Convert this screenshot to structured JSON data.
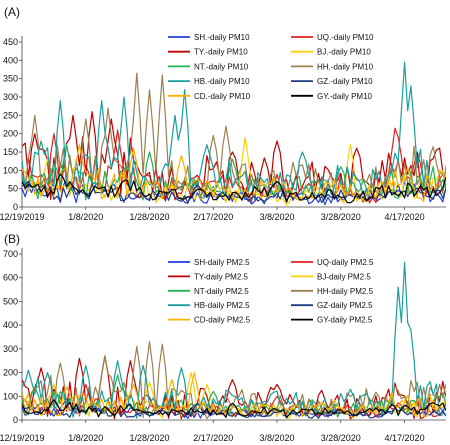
{
  "figure": {
    "panel_a_label": "(A)",
    "panel_b_label": "(B)"
  },
  "chart_data": [
    {
      "type": "line",
      "panel": "(A)",
      "title": "",
      "xlabel": "",
      "ylabel": "",
      "ylim": [
        0,
        450
      ],
      "yticks": [
        0,
        50,
        100,
        150,
        200,
        250,
        300,
        350,
        400,
        450
      ],
      "x_start": "12/19/2019",
      "x_end": "4/30/2020",
      "x_ticks": [
        "12/19/2019",
        "1/8/2020",
        "1/28/2020",
        "2/17/2020",
        "3/8/2020",
        "3/28/2020",
        "4/17/2020"
      ],
      "grid": false,
      "legend": "top-right",
      "series": [
        {
          "name": "SH.-daily PM10",
          "color": "#1f3fd8",
          "base": 40,
          "amp": 25,
          "peaks": [
            [
              14,
              75
            ]
          ]
        },
        {
          "name": "UQ.-daily PM10",
          "color": "#e02020",
          "base": 75,
          "amp": 45,
          "peaks": [
            [
              10,
              200
            ],
            [
              30,
              210
            ],
            [
              117,
              215
            ],
            [
              124,
              150
            ],
            [
              118,
              190
            ]
          ]
        },
        {
          "name": "TY.-daily PM10",
          "color": "#c00000",
          "base": 110,
          "amp": 70,
          "peaks": [
            [
              4,
              200
            ],
            [
              16,
              250
            ],
            [
              22,
              260
            ],
            [
              28,
              240
            ],
            [
              66,
              150
            ],
            [
              80,
              180
            ],
            [
              105,
              160
            ],
            [
              130,
              150
            ]
          ]
        },
        {
          "name": "BJ.-daily PM10",
          "color": "#ffd000",
          "base": 55,
          "amp": 40,
          "peaks": [
            [
              8,
              130
            ],
            [
              70,
              190
            ],
            [
              103,
              170
            ],
            [
              131,
              90
            ]
          ]
        },
        {
          "name": "NT.-daily PM10",
          "color": "#22b050",
          "base": 70,
          "amp": 40,
          "peaks": [
            [
              14,
              170
            ],
            [
              40,
              150
            ],
            [
              66,
              130
            ],
            [
              100,
              110
            ]
          ]
        },
        {
          "name": "HH.-daily PM10",
          "color": "#9b8050",
          "base": 100,
          "amp": 60,
          "peaks": [
            [
              4,
              250
            ],
            [
              20,
              240
            ],
            [
              27,
              270
            ],
            [
              36,
              365
            ],
            [
              40,
              320
            ],
            [
              44,
              360
            ],
            [
              60,
              195
            ],
            [
              64,
              220
            ]
          ]
        },
        {
          "name": "HB.-daily PM10",
          "color": "#1a9e9e",
          "base": 100,
          "amp": 60,
          "peaks": [
            [
              6,
              180
            ],
            [
              12,
              290
            ],
            [
              25,
              290
            ],
            [
              32,
              300
            ],
            [
              48,
              250
            ],
            [
              51,
              320
            ],
            [
              58,
              170
            ],
            [
              88,
              150
            ],
            [
              120,
              395
            ],
            [
              122,
              330
            ]
          ]
        },
        {
          "name": "GZ.-daily PM10",
          "color": "#1f3a80",
          "base": 40,
          "amp": 20,
          "peaks": [
            [
              2,
              70
            ],
            [
              55,
              60
            ]
          ]
        },
        {
          "name": "CD.-daily PM10",
          "color": "#ffb000",
          "base": 65,
          "amp": 40,
          "peaks": [
            [
              18,
              170
            ],
            [
              35,
              160
            ],
            [
              50,
              140
            ]
          ]
        },
        {
          "name": "GY.-daily PM10",
          "color": "#000000",
          "base": 50,
          "amp": 25,
          "peaks": [
            [
              12,
              90
            ],
            [
              80,
              70
            ]
          ]
        }
      ]
    },
    {
      "type": "line",
      "panel": "(B)",
      "title": "",
      "xlabel": "",
      "ylabel": "",
      "ylim": [
        0,
        700
      ],
      "yticks": [
        0,
        100,
        200,
        300,
        400,
        500,
        600,
        700
      ],
      "x_start": "12/19/2019",
      "x_end": "4/30/2020",
      "x_ticks": [
        "12/19/2019",
        "1/8/2020",
        "1/28/2020",
        "2/17/2020",
        "3/8/2020",
        "3/28/2020",
        "4/17/2020"
      ],
      "grid": false,
      "legend": "top-right",
      "series": [
        {
          "name": "SH-daily PM2.5",
          "color": "#1f3fd8",
          "base": 40,
          "amp": 25,
          "peaks": [
            [
              14,
              90
            ]
          ]
        },
        {
          "name": "UQ-daily PM2.5",
          "color": "#e02020",
          "base": 55,
          "amp": 30,
          "peaks": [
            [
              20,
              150
            ],
            [
              80,
              100
            ]
          ]
        },
        {
          "name": "TY-daily PM2.5",
          "color": "#c00000",
          "base": 100,
          "amp": 80,
          "peaks": [
            [
              6,
              220
            ],
            [
              18,
              260
            ],
            [
              26,
              270
            ],
            [
              34,
              250
            ],
            [
              66,
              170
            ],
            [
              80,
              150
            ]
          ]
        },
        {
          "name": "BJ-daily PM2.5",
          "color": "#ffd000",
          "base": 60,
          "amp": 40,
          "peaks": [
            [
              10,
              150
            ],
            [
              40,
              160
            ],
            [
              53,
              200
            ],
            [
              58,
              150
            ]
          ]
        },
        {
          "name": "NT-daily PM2.5",
          "color": "#22b050",
          "base": 70,
          "amp": 40,
          "peaks": [
            [
              4,
              140
            ],
            [
              30,
              190
            ],
            [
              60,
              120
            ]
          ]
        },
        {
          "name": "HH-daily PM2.5",
          "color": "#9b8050",
          "base": 100,
          "amp": 70,
          "peaks": [
            [
              12,
              240
            ],
            [
              26,
              270
            ],
            [
              36,
              310
            ],
            [
              40,
              330
            ],
            [
              44,
              320
            ]
          ]
        },
        {
          "name": "HB-daily PM2.5",
          "color": "#1a9e9e",
          "base": 100,
          "amp": 70,
          "peaks": [
            [
              2,
              210
            ],
            [
              8,
              200
            ],
            [
              20,
              230
            ],
            [
              30,
              250
            ],
            [
              38,
              230
            ],
            [
              50,
              220
            ],
            [
              118,
              560
            ],
            [
              120,
              665
            ],
            [
              122,
              380
            ]
          ]
        },
        {
          "name": "GZ-daily PM2.5",
          "color": "#1f3a80",
          "base": 35,
          "amp": 20,
          "peaks": [
            [
              55,
              70
            ]
          ]
        },
        {
          "name": "CD-daily PM2.5",
          "color": "#ffb000",
          "base": 65,
          "amp": 40,
          "peaks": [
            [
              14,
              140
            ],
            [
              35,
              150
            ],
            [
              47,
              170
            ],
            [
              54,
              200
            ]
          ]
        },
        {
          "name": "GY-daily PM2.5",
          "color": "#000000",
          "base": 45,
          "amp": 25,
          "peaks": [
            [
              10,
              85
            ],
            [
              66,
              70
            ]
          ]
        }
      ]
    }
  ]
}
